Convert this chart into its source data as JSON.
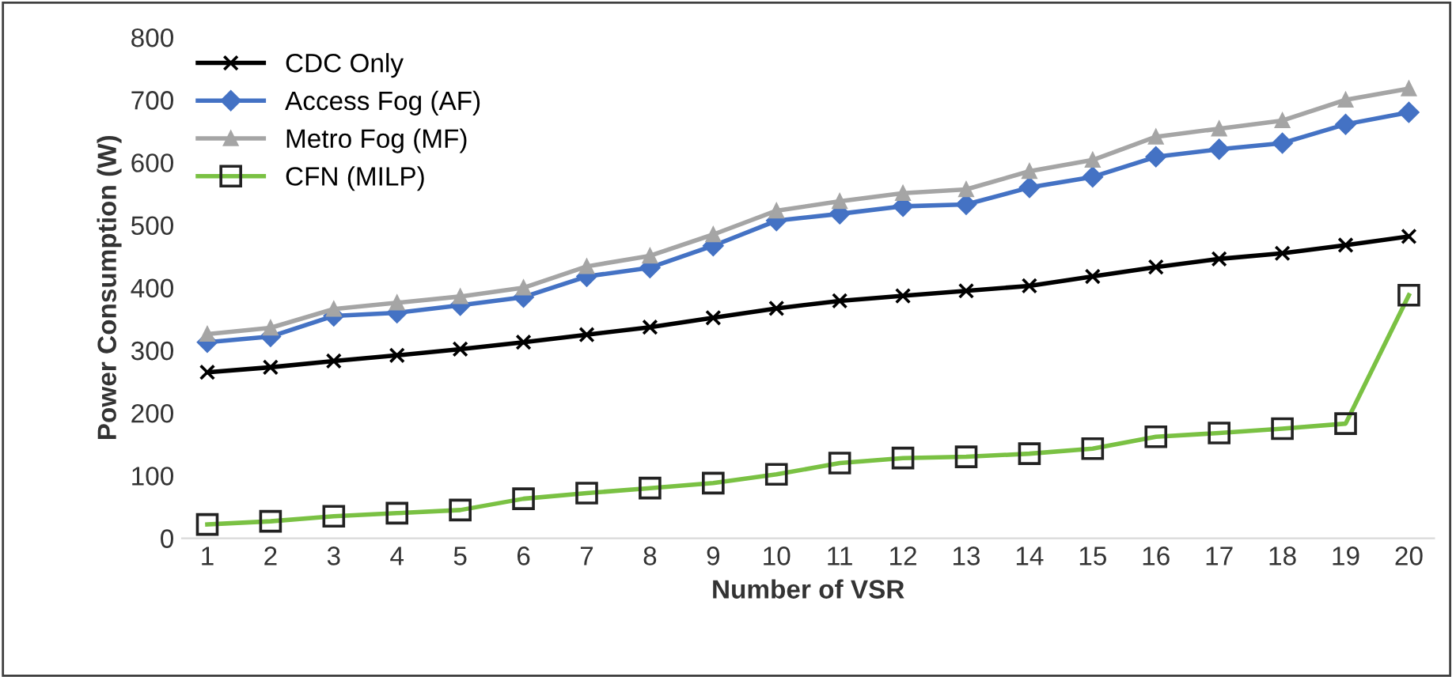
{
  "chart_data": {
    "type": "line",
    "xlabel": "Number of VSR",
    "ylabel": "Power Consumption (W)",
    "categories": [
      "1",
      "2",
      "3",
      "4",
      "5",
      "6",
      "7",
      "8",
      "9",
      "10",
      "11",
      "12",
      "13",
      "14",
      "15",
      "16",
      "17",
      "18",
      "19",
      "20"
    ],
    "series": [
      {
        "name": "CDC Only",
        "color": "#000000",
        "marker": "cross",
        "values": [
          265,
          273,
          283,
          292,
          302,
          313,
          325,
          337,
          352,
          367,
          379,
          387,
          395,
          403,
          418,
          433,
          446,
          455,
          468,
          482
        ]
      },
      {
        "name": "Access Fog (AF)",
        "color": "#4472c4",
        "marker": "diamond",
        "values": [
          313,
          322,
          355,
          360,
          372,
          385,
          418,
          432,
          467,
          507,
          518,
          530,
          533,
          560,
          577,
          609,
          621,
          631,
          661,
          680
        ]
      },
      {
        "name": "Metro Fog (MF)",
        "color": "#a5a5a5",
        "marker": "triangle",
        "values": [
          326,
          336,
          366,
          376,
          386,
          400,
          434,
          451,
          485,
          523,
          538,
          551,
          557,
          586,
          604,
          641,
          654,
          667,
          700,
          718
        ]
      },
      {
        "name": "CFN (MILP)",
        "color": "#7ac143",
        "marker": "square",
        "values": [
          22,
          27,
          35,
          40,
          45,
          63,
          72,
          80,
          88,
          102,
          120,
          128,
          130,
          135,
          143,
          162,
          168,
          175,
          183,
          388
        ]
      }
    ],
    "ylim": [
      0,
      800
    ],
    "yticks": [
      0,
      100,
      200,
      300,
      400,
      500,
      600,
      700,
      800
    ],
    "grid": false,
    "legend": "top left",
    "line_style": "solid"
  }
}
